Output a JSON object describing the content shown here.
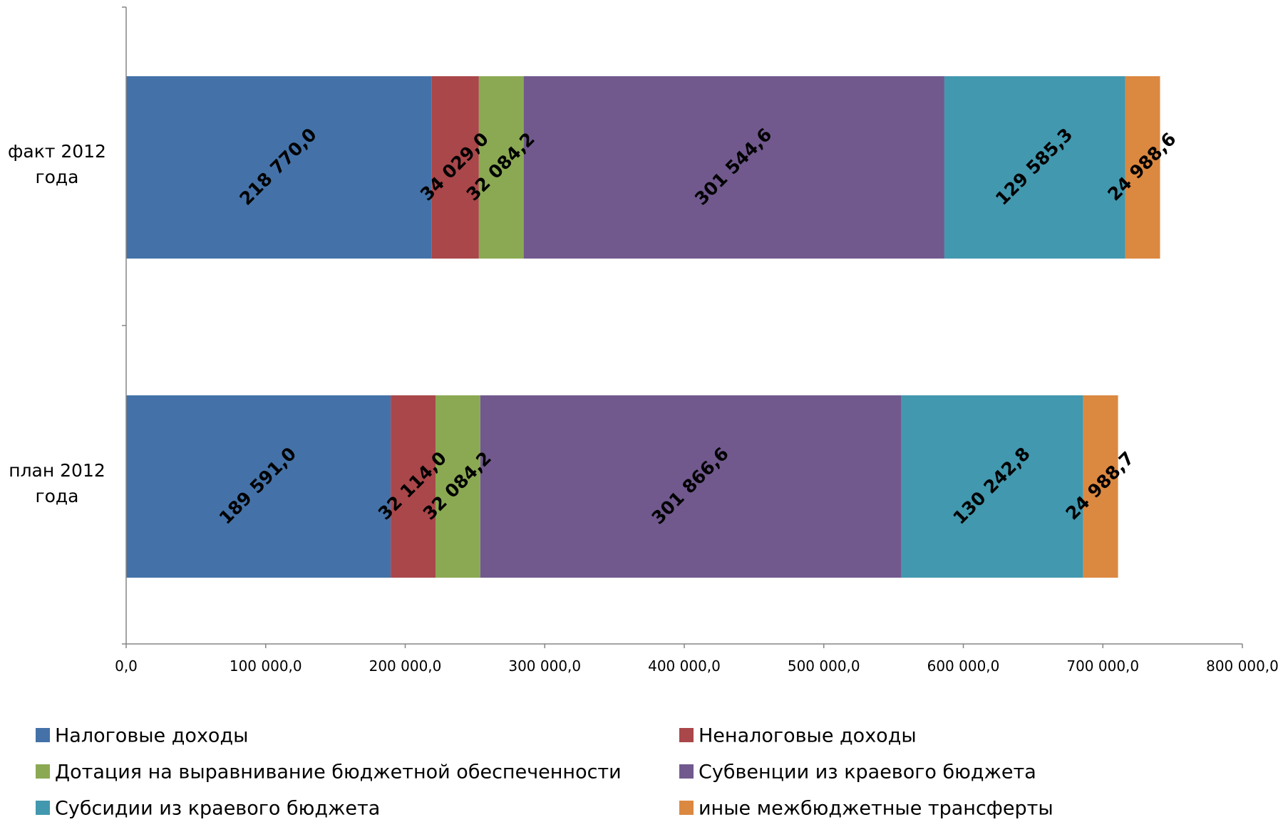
{
  "chart_data": {
    "type": "bar",
    "orientation": "horizontal",
    "stacked": true,
    "categories": [
      "факт 2012 года",
      "план 2012 года"
    ],
    "series": [
      {
        "name": "Налоговые доходы",
        "color": "#4472A8",
        "values": [
          218770.0,
          189591.0
        ],
        "labels": [
          "218 770,0",
          "189 591,0"
        ]
      },
      {
        "name": "Неналоговые доходы",
        "color": "#A9474A",
        "values": [
          34029.0,
          32114.0
        ],
        "labels": [
          "34 029,0",
          "32 114,0"
        ]
      },
      {
        "name": "Дотация на выравнивание бюджетной обеспеченности",
        "color": "#8BA953",
        "values": [
          32084.2,
          32084.2
        ],
        "labels": [
          "32 084,2",
          "32 084,2"
        ]
      },
      {
        "name": "Субвенции из краевого бюджета",
        "color": "#71598E",
        "values": [
          301544.6,
          301866.6
        ],
        "labels": [
          "301 544,6",
          "301 866,6"
        ]
      },
      {
        "name": "Субсидии из краевого бюджета",
        "color": "#4298AE",
        "values": [
          129585.3,
          130242.8
        ],
        "labels": [
          "129 585,3",
          "130 242,8"
        ]
      },
      {
        "name": "иные межбюджетные трансферты",
        "color": "#DB8841",
        "values": [
          24988.6,
          24988.7
        ],
        "labels": [
          "24 988,6",
          "24 988,7"
        ]
      }
    ],
    "xlim": [
      0,
      800000
    ],
    "xticks": [
      {
        "value": 0,
        "label": "0,0"
      },
      {
        "value": 100000,
        "label": "100 000,0"
      },
      {
        "value": 200000,
        "label": "200 000,0"
      },
      {
        "value": 300000,
        "label": "300 000,0"
      },
      {
        "value": 400000,
        "label": "400 000,0"
      },
      {
        "value": 500000,
        "label": "500 000,0"
      },
      {
        "value": 600000,
        "label": "600 000,0"
      },
      {
        "value": 700000,
        "label": "700 000,0"
      },
      {
        "value": 800000,
        "label": "800 000,0"
      }
    ],
    "category_labels": [
      [
        "факт 2012",
        "года"
      ],
      [
        "план 2012",
        "года"
      ]
    ],
    "grid": false,
    "legend_position": "bottom",
    "title": "",
    "xlabel": "",
    "ylabel": ""
  }
}
